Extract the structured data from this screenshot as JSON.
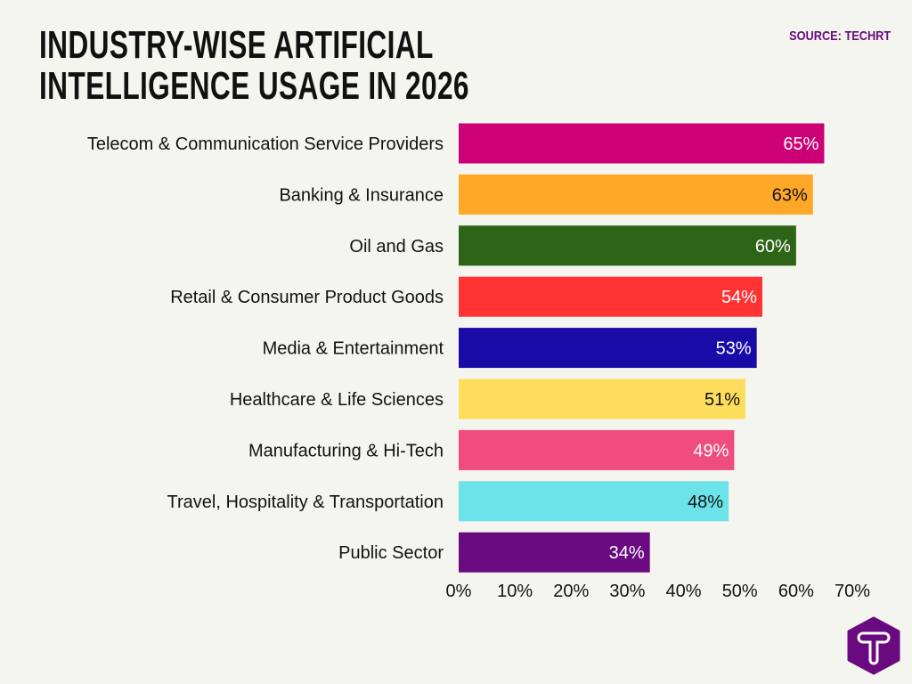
{
  "chart_data": {
    "type": "bar",
    "orientation": "horizontal",
    "title": "INDUSTRY-WISE ARTIFICIAL INTELLIGENCE USAGE IN 2026",
    "source": "SOURCE: TECHRT",
    "categories": [
      "Telecom & Communication Service Providers",
      "Banking & Insurance",
      "Oil and Gas",
      "Retail & Consumer Product Goods",
      "Media & Entertainment",
      "Healthcare & Life Sciences",
      "Manufacturing & Hi-Tech",
      "Travel, Hospitality & Transportation",
      "Public Sector"
    ],
    "values": [
      65,
      63,
      60,
      54,
      53,
      51,
      49,
      48,
      34
    ],
    "data_labels": [
      "65%",
      "63%",
      "60%",
      "54%",
      "53%",
      "51%",
      "49%",
      "48%",
      "34%"
    ],
    "colors": [
      "#cc0077",
      "#ffa726",
      "#2e6417",
      "#ff3333",
      "#1a0aa8",
      "#ffdd5c",
      "#ee4d7d",
      "#6be3e8",
      "#6a0a80"
    ],
    "label_colors": [
      "#ffffff",
      "#111111",
      "#ffffff",
      "#ffffff",
      "#ffffff",
      "#111111",
      "#ffffff",
      "#111111",
      "#ffffff"
    ],
    "xlim": [
      0,
      70
    ],
    "xticks": [
      "0%",
      "10%",
      "20%",
      "30%",
      "40%",
      "50%",
      "60%",
      "70%"
    ],
    "grid": false,
    "legend": "none"
  },
  "logo": {
    "letter": "T",
    "color": "#6a0a80"
  }
}
